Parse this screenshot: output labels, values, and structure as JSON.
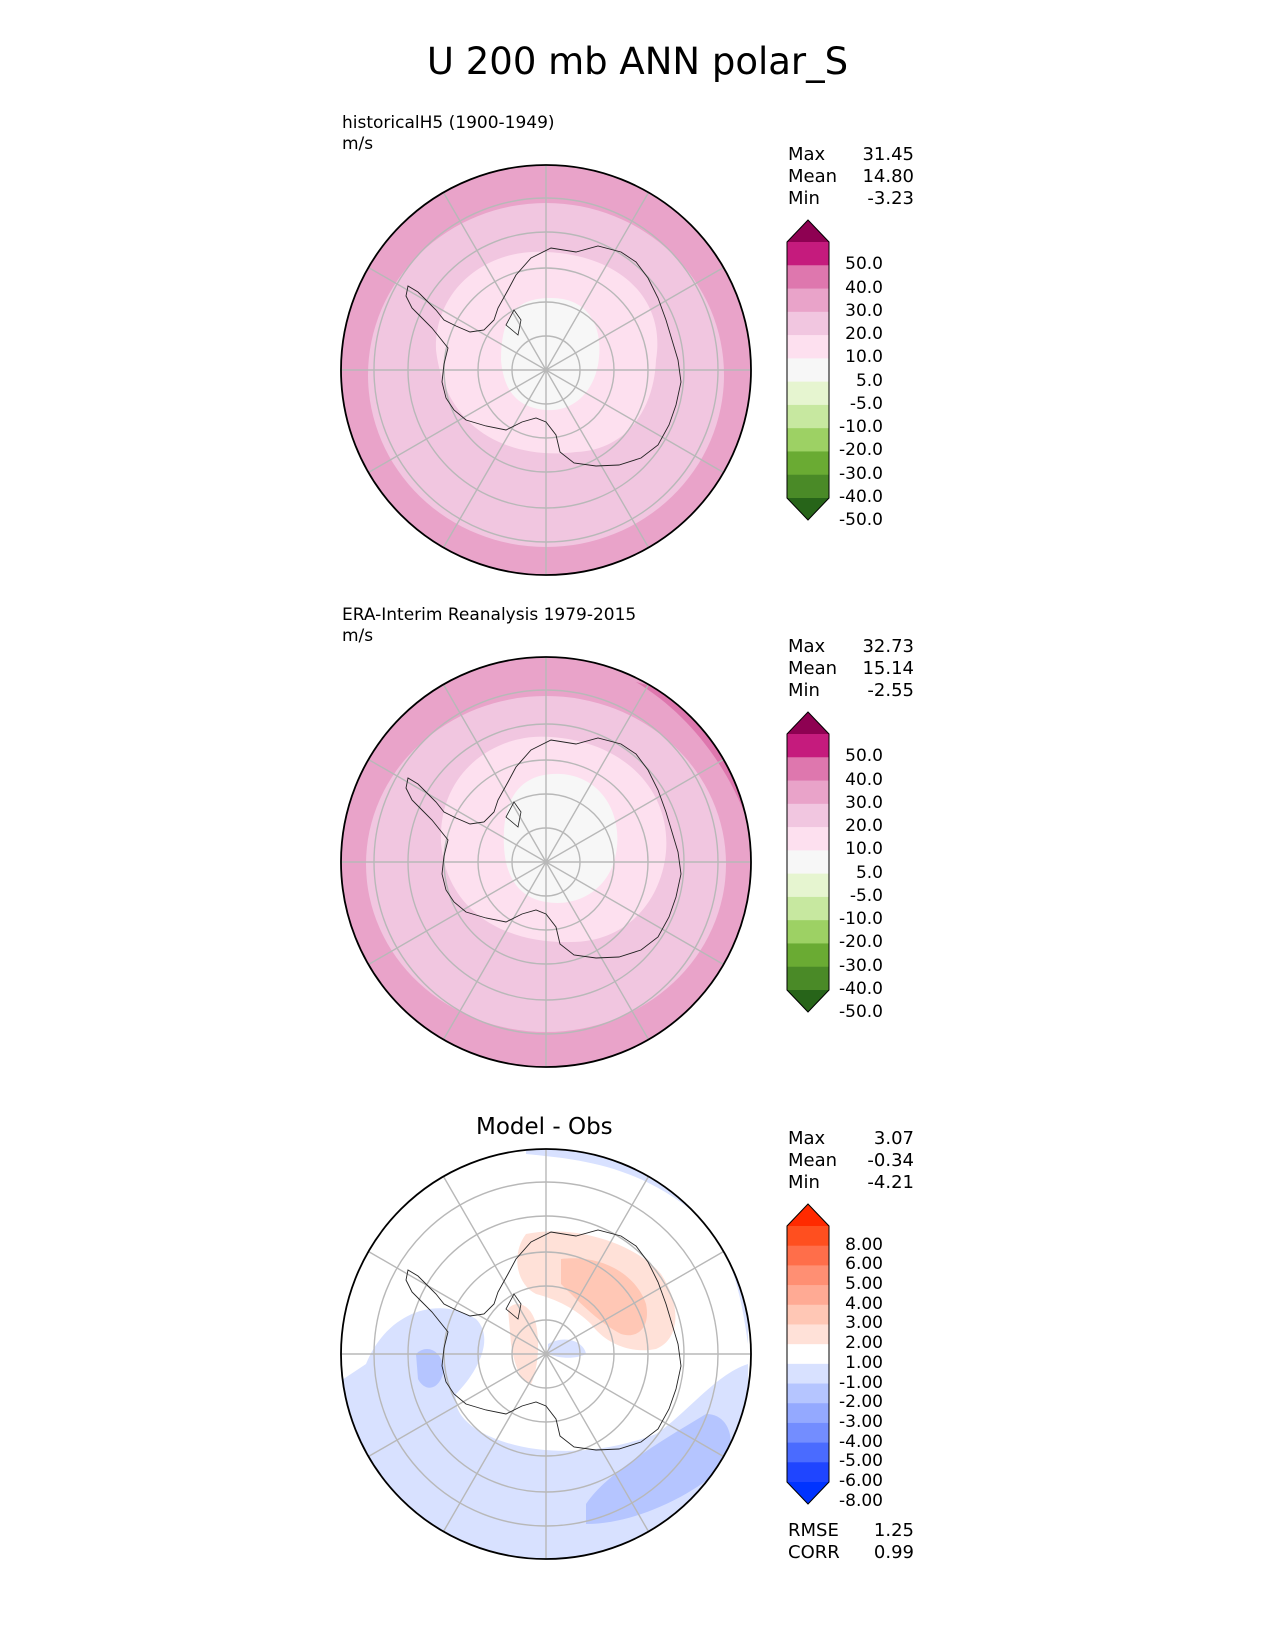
{
  "title": "U 200 mb ANN polar_S",
  "chart_data": [
    {
      "type": "heatmap",
      "panel": "test",
      "title": "historicalH5 (1900-1949)",
      "units": "m/s",
      "projection": "south polar stereographic",
      "stats": [
        {
          "label": "Max",
          "value": "31.45"
        },
        {
          "label": "Mean",
          "value": "14.80"
        },
        {
          "label": "Min",
          "value": "-3.23"
        }
      ],
      "colorbar": {
        "ticks": [
          "50.0",
          "40.0",
          "30.0",
          "20.0",
          "10.0",
          "5.0",
          "-5.0",
          "-10.0",
          "-20.0",
          "-30.0",
          "-40.0",
          "-50.0"
        ],
        "colors": [
          "#8e0152",
          "#c51b7d",
          "#de77ae",
          "#e9a3c9",
          "#f1c6e0",
          "#fde0ef",
          "#f7f7f7",
          "#e6f5d0",
          "#c7e8a0",
          "#9dd164",
          "#6aab33",
          "#4a8a27",
          "#276419"
        ],
        "extend": "both"
      },
      "field_bands": [
        {
          "level": "20.0 to 30.0",
          "color": "#e9a3c9"
        },
        {
          "level": "10.0 to 20.0",
          "color": "#f1c6e0"
        },
        {
          "level": "5.0 to 10.0",
          "color": "#fde0ef"
        },
        {
          "level": "-5.0 to 5.0",
          "color": "#f7f7f7"
        }
      ]
    },
    {
      "type": "heatmap",
      "panel": "reference",
      "title": "ERA-Interim Reanalysis 1979-2015",
      "units": "m/s",
      "projection": "south polar stereographic",
      "stats": [
        {
          "label": "Max",
          "value": "32.73"
        },
        {
          "label": "Mean",
          "value": "15.14"
        },
        {
          "label": "Min",
          "value": "-2.55"
        }
      ],
      "colorbar": {
        "ticks": [
          "50.0",
          "40.0",
          "30.0",
          "20.0",
          "10.0",
          "5.0",
          "-5.0",
          "-10.0",
          "-20.0",
          "-30.0",
          "-40.0",
          "-50.0"
        ],
        "colors": [
          "#8e0152",
          "#c51b7d",
          "#de77ae",
          "#e9a3c9",
          "#f1c6e0",
          "#fde0ef",
          "#f7f7f7",
          "#e6f5d0",
          "#c7e8a0",
          "#9dd164",
          "#6aab33",
          "#4a8a27",
          "#276419"
        ],
        "extend": "both"
      },
      "field_bands": [
        {
          "level": "30.0 to 40.0",
          "color": "#de77ae"
        },
        {
          "level": "20.0 to 30.0",
          "color": "#e9a3c9"
        },
        {
          "level": "10.0 to 20.0",
          "color": "#f1c6e0"
        },
        {
          "level": "5.0 to 10.0",
          "color": "#fde0ef"
        },
        {
          "level": "-5.0 to 5.0",
          "color": "#f7f7f7"
        }
      ]
    },
    {
      "type": "heatmap",
      "panel": "difference",
      "title": "Model - Obs",
      "projection": "south polar stereographic",
      "stats": [
        {
          "label": "Max",
          "value": "3.07"
        },
        {
          "label": "Mean",
          "value": "-0.34"
        },
        {
          "label": "Min",
          "value": "-4.21"
        }
      ],
      "colorbar": {
        "ticks": [
          "8.00",
          "6.00",
          "5.00",
          "4.00",
          "3.00",
          "2.00",
          "1.00",
          "-1.00",
          "-2.00",
          "-3.00",
          "-4.00",
          "-5.00",
          "-6.00",
          "-8.00"
        ],
        "colors": [
          "#ff2a00",
          "#ff4f1f",
          "#ff6e4a",
          "#ff8f73",
          "#ffaa94",
          "#ffc7b5",
          "#ffe1d8",
          "#ffffff",
          "#d8e1ff",
          "#b5c5ff",
          "#94a9ff",
          "#738dff",
          "#4a6bff",
          "#1f45ff",
          "#0033ff"
        ],
        "extend": "both"
      },
      "metrics": [
        {
          "label": "RMSE",
          "value": "1.25"
        },
        {
          "label": "CORR",
          "value": "0.99"
        }
      ]
    }
  ]
}
